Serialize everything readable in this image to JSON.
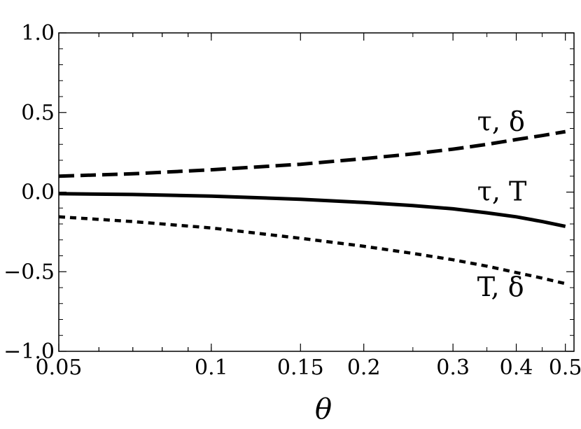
{
  "chart_data": {
    "type": "line",
    "title": "",
    "xlabel": "θ",
    "ylabel": "",
    "x_scale": "log",
    "xlim": [
      0.05,
      0.52
    ],
    "ylim": [
      -1.0,
      1.0
    ],
    "x_ticks": [
      {
        "value": 0.05,
        "label": "0.05"
      },
      {
        "value": 0.1,
        "label": "0.1"
      },
      {
        "value": 0.15,
        "label": "0.15"
      },
      {
        "value": 0.2,
        "label": "0.2"
      },
      {
        "value": 0.3,
        "label": "0.3"
      },
      {
        "value": 0.4,
        "label": "0.4"
      },
      {
        "value": 0.5,
        "label": "0.5"
      }
    ],
    "y_ticks": [
      {
        "value": 1.0,
        "label": "1.0"
      },
      {
        "value": 0.5,
        "label": "0.5"
      },
      {
        "value": 0.0,
        "label": "0.0"
      },
      {
        "value": -0.5,
        "label": "−0.5"
      },
      {
        "value": -1.0,
        "label": "−1.0"
      }
    ],
    "grid": false,
    "series": [
      {
        "name": "τ, δ",
        "style": "dashed",
        "x": [
          0.05,
          0.07,
          0.1,
          0.15,
          0.2,
          0.25,
          0.3,
          0.35,
          0.4,
          0.45,
          0.5
        ],
        "y": [
          0.1,
          0.115,
          0.14,
          0.175,
          0.21,
          0.24,
          0.27,
          0.3,
          0.33,
          0.355,
          0.38
        ]
      },
      {
        "name": "τ, T",
        "style": "solid",
        "x": [
          0.05,
          0.07,
          0.1,
          0.15,
          0.2,
          0.25,
          0.3,
          0.35,
          0.4,
          0.45,
          0.5
        ],
        "y": [
          -0.01,
          -0.015,
          -0.025,
          -0.045,
          -0.065,
          -0.085,
          -0.105,
          -0.13,
          -0.155,
          -0.185,
          -0.215
        ]
      },
      {
        "name": "T, δ",
        "style": "dotted",
        "x": [
          0.05,
          0.07,
          0.1,
          0.15,
          0.2,
          0.25,
          0.3,
          0.35,
          0.4,
          0.45,
          0.5
        ],
        "y": [
          -0.155,
          -0.185,
          -0.225,
          -0.29,
          -0.34,
          -0.385,
          -0.425,
          -0.465,
          -0.505,
          -0.54,
          -0.575
        ]
      }
    ],
    "annotations": [
      {
        "text": "τ, δ",
        "x": 0.335,
        "y": 0.44
      },
      {
        "text": "τ, T",
        "x": 0.335,
        "y": 0.0
      },
      {
        "text": "T, δ",
        "x": 0.335,
        "y": -0.6
      }
    ]
  }
}
